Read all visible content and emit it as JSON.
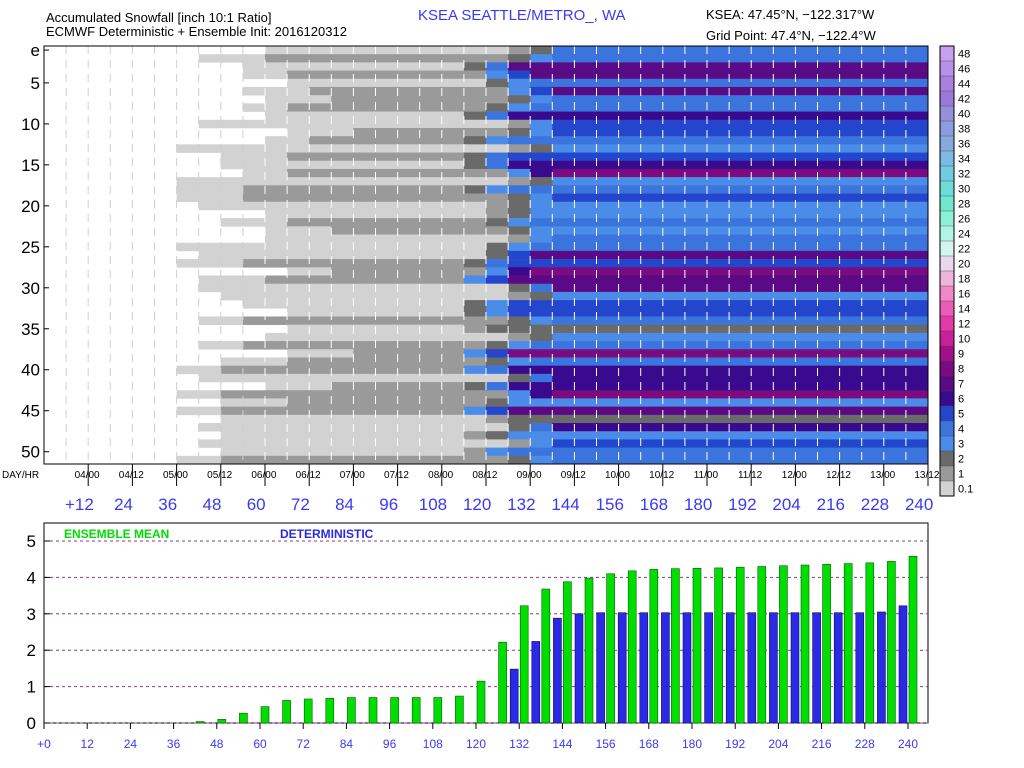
{
  "header": {
    "title_line1": "Accumulated Snowfall [inch 10:1 Ratio]",
    "title_line2": "ECMWF Deterministic + Ensemble Init: 2016120312",
    "station": "KSEA SEATTLE/METRO_, WA",
    "station_coords": "KSEA: 47.45°N, −122.317°W",
    "grid_point": "Grid Point: 47.4°N, −122.4°W"
  },
  "colors": {
    "blue_text": "#3a3af2",
    "ensemble_mean": "#00dd00",
    "deterministic": "#2a2ae6",
    "grid_dashed": "#8a3a8a"
  },
  "chart_data": [
    {
      "type": "heatmap",
      "title": "Accumulated Snowfall [inch 10:1 Ratio]",
      "y_row_labels": [
        "e",
        "5",
        "10",
        "15",
        "20",
        "25",
        "30",
        "35",
        "40",
        "45",
        "50"
      ],
      "x_date_axis_label": "DAY/HR",
      "x_date_labels": [
        "04/00",
        "04/12",
        "05/00",
        "05/12",
        "06/00",
        "06/12",
        "07/00",
        "07/12",
        "08/00",
        "08/12",
        "09/00",
        "09/12",
        "10/00",
        "10/12",
        "11/00",
        "11/12",
        "12/00",
        "12/12",
        "13/00",
        "13/12"
      ],
      "x_hour_labels": [
        "+12",
        "24",
        "36",
        "48",
        "60",
        "72",
        "84",
        "96",
        "108",
        "120",
        "132",
        "144",
        "156",
        "168",
        "180",
        "192",
        "204",
        "216",
        "228",
        "240"
      ],
      "legend": {
        "labels": [
          "48",
          "46",
          "44",
          "42",
          "40",
          "38",
          "36",
          "34",
          "32",
          "30",
          "28",
          "26",
          "24",
          "22",
          "20",
          "18",
          "16",
          "14",
          "12",
          "10",
          "9",
          "8",
          "7",
          "6",
          "5",
          "4",
          "3",
          "2",
          "1",
          "0.1"
        ],
        "colors": [
          "#c8a0f0",
          "#b890ea",
          "#a880e0",
          "#9c78d8",
          "#9490dc",
          "#8c9ce0",
          "#88a8e0",
          "#7cbce4",
          "#70cce0",
          "#6cdcd8",
          "#70e8d0",
          "#8cf0d8",
          "#b0f4e8",
          "#d4f4f0",
          "#e8d8ec",
          "#f0b4dc",
          "#ee88c8",
          "#ea5cb8",
          "#e03aa8",
          "#c8209a",
          "#a01088",
          "#7a0c80",
          "#5a0a84",
          "#3a0a8e",
          "#2446cc",
          "#3a74dc",
          "#4a8ce8",
          "#6a6a6a",
          "#9a9a9a",
          "#d2d2d2"
        ]
      },
      "cells": "encoded-in-script"
    },
    {
      "type": "bar",
      "title": "",
      "xlabel": "",
      "ylabel": "",
      "x": [
        6,
        12,
        18,
        24,
        30,
        36,
        42,
        48,
        54,
        60,
        66,
        72,
        78,
        84,
        90,
        96,
        102,
        108,
        114,
        120,
        126,
        132,
        138,
        144,
        150,
        156,
        162,
        168,
        174,
        180,
        186,
        192,
        198,
        204,
        210,
        216,
        222,
        228,
        234,
        240
      ],
      "ylim": [
        0,
        5
      ],
      "y_ticks": [
        "0",
        "1",
        "2",
        "3",
        "4",
        "5"
      ],
      "x_tick_labels": [
        "+0",
        "12",
        "24",
        "36",
        "48",
        "60",
        "72",
        "84",
        "96",
        "108",
        "120",
        "132",
        "144",
        "156",
        "168",
        "180",
        "192",
        "204",
        "216",
        "228",
        "240"
      ],
      "series": [
        {
          "name": "ENSEMBLE MEAN",
          "values": [
            0,
            0,
            0,
            0,
            0,
            0,
            0.04,
            0.1,
            0.27,
            0.45,
            0.62,
            0.66,
            0.68,
            0.7,
            0.7,
            0.7,
            0.7,
            0.7,
            0.74,
            1.15,
            2.22,
            3.22,
            3.68,
            3.88,
            3.98,
            4.1,
            4.18,
            4.22,
            4.24,
            4.25,
            4.26,
            4.28,
            4.3,
            4.32,
            4.34,
            4.36,
            4.38,
            4.4,
            4.44,
            4.58
          ]
        },
        {
          "name": "DETERMINISTIC",
          "values": [
            0,
            0,
            0,
            0,
            0,
            0,
            0,
            0,
            0,
            0,
            0,
            0,
            0,
            0,
            0,
            0,
            0,
            0,
            0,
            0,
            0,
            1.48,
            2.24,
            2.88,
            3.0,
            3.03,
            3.03,
            3.03,
            3.03,
            3.03,
            3.03,
            3.03,
            3.03,
            3.03,
            3.03,
            3.03,
            3.03,
            3.03,
            3.05,
            3.22
          ]
        }
      ]
    }
  ]
}
